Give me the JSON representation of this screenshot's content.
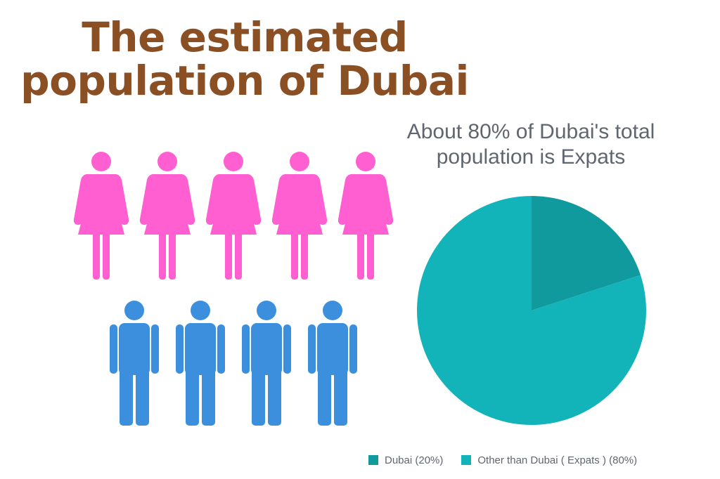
{
  "headline": {
    "line1": "The estimated",
    "line2": "population of Dubai"
  },
  "colors": {
    "title": "#8b4f24",
    "female_icon": "#ff5fd0",
    "male_icon": "#3b8fdc",
    "slice_dubai": "#119a9e",
    "slice_expats": "#12b3b9"
  },
  "icons": {
    "female": {
      "name": "female-person-icon",
      "count": 5
    },
    "male": {
      "name": "male-person-icon",
      "count": 4
    }
  },
  "chart_data": {
    "type": "pie",
    "title": [
      "About 80% of Dubai's total",
      "population is Expats"
    ],
    "slices": [
      {
        "label": "Dubai (20%)",
        "value": 20,
        "color": "#119a9e"
      },
      {
        "label": "Other than Dubai ( Expats ) (80%)",
        "value": 80,
        "color": "#12b3b9"
      }
    ],
    "legend_position": "bottom"
  }
}
